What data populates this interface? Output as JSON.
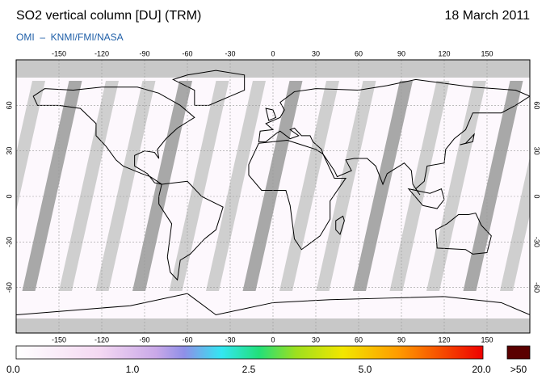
{
  "header": {
    "title": "SO2 vertical column [DU] (TRM)",
    "date": "18 March 2011",
    "subtitle": "OMI  –  KNMI/FMI/NASA"
  },
  "map": {
    "lon_ticks": [
      -150,
      -120,
      -90,
      -60,
      -30,
      0,
      30,
      60,
      90,
      120,
      150
    ],
    "lat_ticks": [
      60,
      30,
      0,
      -30,
      -60
    ]
  },
  "colorbar": {
    "labels": [
      "0.0",
      "1.0",
      "2.5",
      "5.0",
      "20.0"
    ],
    "overflow": ">50"
  }
}
